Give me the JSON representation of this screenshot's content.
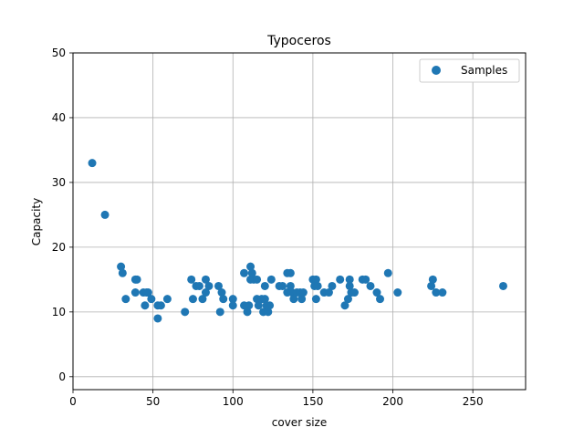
{
  "chart_data": {
    "type": "scatter",
    "title": "Typoceros",
    "xlabel": "cover size",
    "ylabel": "Capacity",
    "xlim": [
      0,
      283
    ],
    "ylim": [
      -2,
      50
    ],
    "xticks": [
      0,
      50,
      100,
      150,
      200,
      250
    ],
    "yticks": [
      0,
      10,
      20,
      30,
      40,
      50
    ],
    "grid": true,
    "legend_position": "top-right",
    "series": [
      {
        "name": "Samples",
        "color": "#1f77b4",
        "points": [
          [
            12,
            33
          ],
          [
            20,
            25
          ],
          [
            30,
            17
          ],
          [
            31,
            16
          ],
          [
            33,
            12
          ],
          [
            39,
            15
          ],
          [
            39,
            13
          ],
          [
            40,
            15
          ],
          [
            44,
            13
          ],
          [
            45,
            11
          ],
          [
            46,
            13
          ],
          [
            47,
            13
          ],
          [
            49,
            12
          ],
          [
            53,
            9
          ],
          [
            53,
            11
          ],
          [
            55,
            11
          ],
          [
            59,
            12
          ],
          [
            70,
            10
          ],
          [
            74,
            15
          ],
          [
            75,
            12
          ],
          [
            77,
            14
          ],
          [
            79,
            14
          ],
          [
            81,
            12
          ],
          [
            83,
            15
          ],
          [
            83,
            13
          ],
          [
            85,
            14
          ],
          [
            91,
            14
          ],
          [
            92,
            10
          ],
          [
            93,
            13
          ],
          [
            94,
            12
          ],
          [
            100,
            12
          ],
          [
            100,
            11
          ],
          [
            107,
            16
          ],
          [
            107,
            11
          ],
          [
            109,
            10
          ],
          [
            110,
            11
          ],
          [
            111,
            17
          ],
          [
            111,
            15
          ],
          [
            112,
            16
          ],
          [
            113,
            15
          ],
          [
            115,
            15
          ],
          [
            115,
            12
          ],
          [
            116,
            11
          ],
          [
            118,
            12
          ],
          [
            119,
            10
          ],
          [
            120,
            12
          ],
          [
            120,
            14
          ],
          [
            121,
            11
          ],
          [
            122,
            10
          ],
          [
            123,
            11
          ],
          [
            124,
            15
          ],
          [
            129,
            14
          ],
          [
            131,
            14
          ],
          [
            134,
            16
          ],
          [
            134,
            13
          ],
          [
            136,
            16
          ],
          [
            136,
            14
          ],
          [
            137,
            13
          ],
          [
            138,
            12
          ],
          [
            140,
            13
          ],
          [
            142,
            13
          ],
          [
            143,
            12
          ],
          [
            144,
            13
          ],
          [
            150,
            15
          ],
          [
            151,
            14
          ],
          [
            152,
            12
          ],
          [
            152,
            15
          ],
          [
            153,
            14
          ],
          [
            157,
            13
          ],
          [
            160,
            13
          ],
          [
            162,
            14
          ],
          [
            167,
            15
          ],
          [
            170,
            11
          ],
          [
            172,
            12
          ],
          [
            173,
            15
          ],
          [
            173,
            14
          ],
          [
            174,
            13
          ],
          [
            176,
            13
          ],
          [
            181,
            15
          ],
          [
            183,
            15
          ],
          [
            186,
            14
          ],
          [
            190,
            13
          ],
          [
            192,
            12
          ],
          [
            197,
            16
          ],
          [
            203,
            13
          ],
          [
            224,
            14
          ],
          [
            225,
            15
          ],
          [
            227,
            13
          ],
          [
            231,
            13
          ],
          [
            269,
            14
          ]
        ]
      }
    ]
  }
}
